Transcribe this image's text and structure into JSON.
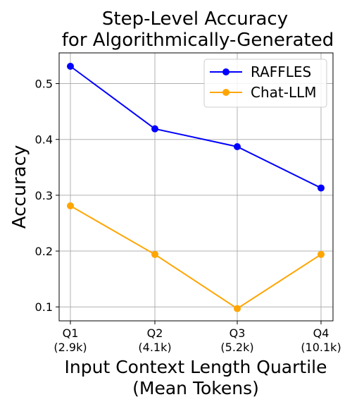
{
  "chart_data": {
    "type": "line",
    "title": [
      "Step-Level Accuracy",
      "for Algorithmically-Generated"
    ],
    "xlabel": [
      "Input Context Length Quartile",
      "(Mean Tokens)"
    ],
    "ylabel": "Accuracy",
    "categories": [
      {
        "label": "Q1",
        "sublabel": "(2.9k)"
      },
      {
        "label": "Q2",
        "sublabel": "(4.1k)"
      },
      {
        "label": "Q3",
        "sublabel": "(5.2k)"
      },
      {
        "label": "Q4",
        "sublabel": "(10.1k)"
      }
    ],
    "yticks": [
      "0.1",
      "0.2",
      "0.3",
      "0.4",
      "0.5"
    ],
    "ylim": [
      0.075,
      0.555
    ],
    "grid": true,
    "legend_position": "top-right",
    "series": [
      {
        "name": "RAFFLES",
        "color": "#0000ff",
        "values": [
          0.531,
          0.419,
          0.387,
          0.313
        ]
      },
      {
        "name": "Chat-LLM",
        "color": "#ffa500",
        "values": [
          0.281,
          0.194,
          0.097,
          0.194
        ]
      }
    ]
  }
}
